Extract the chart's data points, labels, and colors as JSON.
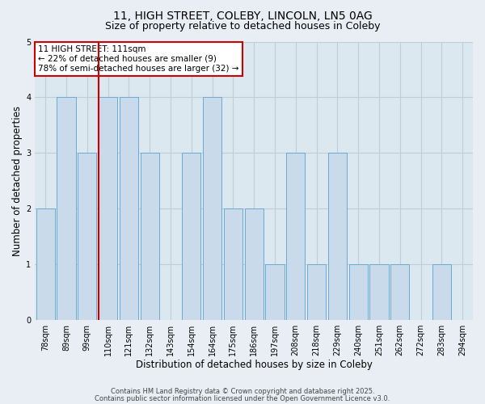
{
  "title_line1": "11, HIGH STREET, COLEBY, LINCOLN, LN5 0AG",
  "title_line2": "Size of property relative to detached houses in Coleby",
  "xlabel": "Distribution of detached houses by size in Coleby",
  "ylabel": "Number of detached properties",
  "bin_labels": [
    "78sqm",
    "89sqm",
    "99sqm",
    "110sqm",
    "121sqm",
    "132sqm",
    "143sqm",
    "154sqm",
    "164sqm",
    "175sqm",
    "186sqm",
    "197sqm",
    "208sqm",
    "218sqm",
    "229sqm",
    "240sqm",
    "251sqm",
    "262sqm",
    "272sqm",
    "283sqm",
    "294sqm"
  ],
  "bar_values": [
    2,
    4,
    3,
    4,
    4,
    3,
    0,
    3,
    4,
    2,
    2,
    1,
    3,
    1,
    3,
    1,
    1,
    1,
    0,
    1,
    0
  ],
  "bar_color": "#c9daea",
  "bar_edge_color": "#6aaad4",
  "vline_x_index": 3,
  "vline_color": "#cc0000",
  "ylim": [
    0,
    5
  ],
  "yticks": [
    0,
    1,
    2,
    3,
    4,
    5
  ],
  "annotation_text": "11 HIGH STREET: 111sqm\n← 22% of detached houses are smaller (9)\n78% of semi-detached houses are larger (32) →",
  "annotation_box_color": "#ffffff",
  "annotation_box_edge_color": "#cc0000",
  "footer_line1": "Contains HM Land Registry data © Crown copyright and database right 2025.",
  "footer_line2": "Contains public sector information licensed under the Open Government Licence v3.0.",
  "background_color": "#e8eef4",
  "plot_background_color": "#dce8f0",
  "grid_color": "#c0ccd8",
  "title_fontsize": 10,
  "subtitle_fontsize": 9,
  "axis_label_fontsize": 8.5,
  "tick_fontsize": 7,
  "annotation_fontsize": 7.5,
  "footer_fontsize": 6
}
